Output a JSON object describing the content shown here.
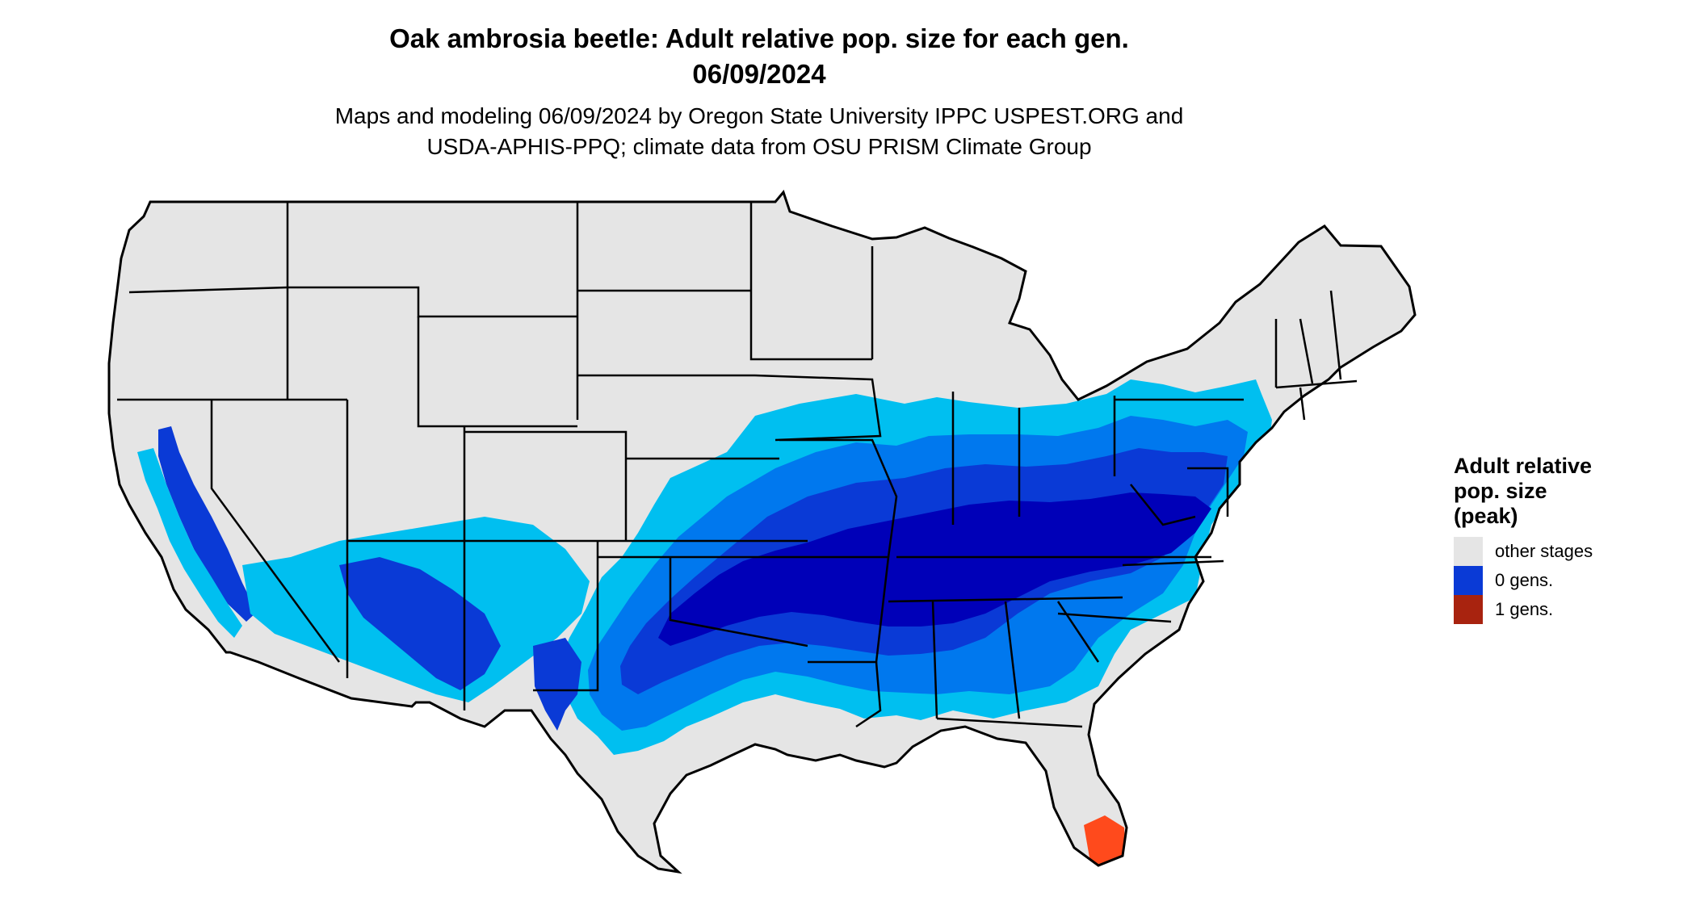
{
  "title": {
    "line1": "Oak ambrosia beetle: Adult relative pop. size for each gen.",
    "line2": "06/09/2024"
  },
  "subtitle": {
    "line1": "Maps and modeling 06/09/2024 by Oregon State University IPPC USPEST.ORG and",
    "line2": "USDA-APHIS-PPQ; climate data from OSU PRISM Climate Group"
  },
  "legend": {
    "title_line1": "Adult relative",
    "title_line2": "pop. size",
    "title_line3": "(peak)",
    "items": [
      {
        "label": "other stages",
        "color": "#e5e5e5"
      },
      {
        "label": "0 gens.",
        "color": "#0a3ad6"
      },
      {
        "label": "1 gens.",
        "color": "#a8230f"
      }
    ]
  },
  "map": {
    "region": "contiguous United States",
    "colors": {
      "other_stages": "#e5e5e5",
      "light_blue": "#00bff0",
      "mid_blue": "#0078ee",
      "blue": "#0a3ad6",
      "dark_blue": "#0000b8",
      "orange": "#ff4a1c",
      "dark_red": "#a8230f",
      "border": "#000000"
    }
  }
}
